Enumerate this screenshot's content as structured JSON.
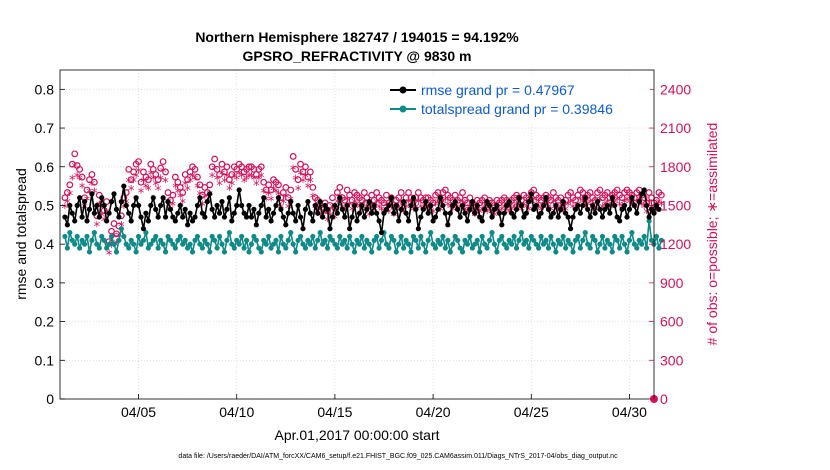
{
  "colors": {
    "rmse": "#000000",
    "spread": "#0e8a88",
    "obs": "#d6105a",
    "legend_text": "#0b5bd4"
  },
  "chart_data": {
    "type": "line",
    "title_line1": "Northern Hemisphere 182747 / 194015 = 94.192%",
    "title_line2": "GPSRO_REFRACTIVITY @ 9830 m",
    "xlabel": "Apr.01,2017 00:00:00 start",
    "ylabel_left": "rmse and totalspread",
    "ylabel_right": "# of obs: o=possible; ∗=assimilated",
    "x_tick_labels": [
      "04/05",
      "04/10",
      "04/15",
      "04/20",
      "04/25",
      "04/30"
    ],
    "x_tick_days": [
      5,
      10,
      15,
      20,
      25,
      30
    ],
    "xlim": [
      1.0,
      31.25
    ],
    "ylim_left": [
      0,
      0.85
    ],
    "y_ticks_left": [
      "0",
      "0.1",
      "0.2",
      "0.3",
      "0.4",
      "0.5",
      "0.6",
      "0.7",
      "0.8"
    ],
    "ylim_right": [
      0,
      2550
    ],
    "y_ticks_right": [
      "0",
      "300",
      "600",
      "900",
      "1200",
      "1500",
      "1800",
      "2100",
      "2400"
    ],
    "footer": "data file: /Users/raeder/DAI/ATM_forcXX/CAM6_setup/f.e21.FHIST_BGC.f09_025.CAM6assim.011/Diags_NTrS_2017-04/obs_diag_output.nc",
    "legend": [
      {
        "label": "rmse grand pr = 0.47967",
        "series": "rmse"
      },
      {
        "label": "totalspread grand pr = 0.39846",
        "series": "totalspread"
      }
    ],
    "series": [
      {
        "name": "rmse",
        "values": [
          0.47,
          0.45,
          0.5,
          0.48,
          0.46,
          0.5,
          0.52,
          0.47,
          0.51,
          0.46,
          0.49,
          0.53,
          0.48,
          0.5,
          0.47,
          0.52,
          0.5,
          0.46,
          0.48,
          0.51,
          0.53,
          0.49,
          0.47,
          0.51,
          0.55,
          0.5,
          0.48,
          0.46,
          0.5,
          0.52,
          0.5,
          0.47,
          0.44,
          0.48,
          0.46,
          0.5,
          0.52,
          0.49,
          0.47,
          0.5,
          0.52,
          0.47,
          0.51,
          0.49,
          0.47,
          0.46,
          0.48,
          0.5,
          0.47,
          0.49,
          0.45,
          0.48,
          0.46,
          0.47,
          0.5,
          0.52,
          0.48,
          0.47,
          0.51,
          0.53,
          0.49,
          0.47,
          0.5,
          0.48,
          0.51,
          0.47,
          0.49,
          0.52,
          0.46,
          0.48,
          0.5,
          0.54,
          0.5,
          0.48,
          0.47,
          0.5,
          0.47,
          0.49,
          0.45,
          0.48,
          0.5,
          0.52,
          0.47,
          0.49,
          0.46,
          0.48,
          0.5,
          0.52,
          0.49,
          0.47,
          0.45,
          0.48,
          0.51,
          0.48,
          0.46,
          0.5,
          0.47,
          0.44,
          0.49,
          0.51,
          0.48,
          0.46,
          0.5,
          0.48,
          0.51,
          0.47,
          0.5,
          0.49,
          0.44,
          0.47,
          0.5,
          0.48,
          0.52,
          0.49,
          0.47,
          0.5,
          0.44,
          0.47,
          0.5,
          0.46,
          0.48,
          0.5,
          0.47,
          0.49,
          0.51,
          0.48,
          0.5,
          0.48,
          0.46,
          0.43,
          0.48,
          0.49,
          0.5,
          0.52,
          0.48,
          0.5,
          0.46,
          0.49,
          0.51,
          0.48,
          0.46,
          0.5,
          0.52,
          0.49,
          0.44,
          0.47,
          0.49,
          0.51,
          0.48,
          0.5,
          0.46,
          0.47,
          0.49,
          0.52,
          0.5,
          0.48,
          0.45,
          0.48,
          0.5,
          0.51,
          0.49,
          0.47,
          0.5,
          0.48,
          0.46,
          0.49,
          0.51,
          0.48,
          0.5,
          0.47,
          0.46,
          0.49,
          0.51,
          0.5,
          0.47,
          0.49,
          0.5,
          0.48,
          0.45,
          0.48,
          0.5,
          0.51,
          0.48,
          0.47,
          0.49,
          0.52,
          0.5,
          0.47,
          0.48,
          0.51,
          0.53,
          0.49,
          0.5,
          0.47,
          0.48,
          0.5,
          0.52,
          0.49,
          0.47,
          0.48,
          0.5,
          0.47,
          0.49,
          0.51,
          0.48,
          0.47,
          0.44,
          0.47,
          0.49,
          0.5,
          0.48,
          0.5,
          0.52,
          0.49,
          0.47,
          0.5,
          0.48,
          0.51,
          0.49,
          0.47,
          0.49,
          0.5,
          0.48,
          0.52,
          0.5,
          0.47,
          0.46,
          0.49,
          0.5,
          0.47,
          0.49,
          0.52,
          0.5,
          0.48,
          0.51,
          0.53,
          0.54,
          0.5,
          0.47,
          0.49,
          0.48,
          0.5,
          0.49
        ]
      },
      {
        "name": "totalspread",
        "values": [
          0.42,
          0.39,
          0.43,
          0.41,
          0.4,
          0.42,
          0.39,
          0.41,
          0.4,
          0.42,
          0.38,
          0.41,
          0.43,
          0.4,
          0.39,
          0.42,
          0.41,
          0.39,
          0.4,
          0.42,
          0.4,
          0.38,
          0.41,
          0.44,
          0.42,
          0.4,
          0.39,
          0.41,
          0.4,
          0.38,
          0.42,
          0.4,
          0.41,
          0.43,
          0.39,
          0.4,
          0.41,
          0.42,
          0.39,
          0.41,
          0.4,
          0.38,
          0.42,
          0.41,
          0.4,
          0.39,
          0.41,
          0.42,
          0.4,
          0.41,
          0.39,
          0.4,
          0.38,
          0.41,
          0.42,
          0.4,
          0.39,
          0.41,
          0.4,
          0.38,
          0.42,
          0.41,
          0.39,
          0.42,
          0.4,
          0.38,
          0.41,
          0.43,
          0.4,
          0.39,
          0.41,
          0.4,
          0.42,
          0.39,
          0.41,
          0.38,
          0.4,
          0.42,
          0.41,
          0.39,
          0.38,
          0.41,
          0.4,
          0.42,
          0.39,
          0.4,
          0.41,
          0.38,
          0.42,
          0.4,
          0.39,
          0.41,
          0.43,
          0.4,
          0.38,
          0.41,
          0.42,
          0.4,
          0.39,
          0.41,
          0.4,
          0.42,
          0.39,
          0.41,
          0.43,
          0.4,
          0.41,
          0.39,
          0.42,
          0.41,
          0.4,
          0.39,
          0.42,
          0.4,
          0.41,
          0.39,
          0.42,
          0.4,
          0.38,
          0.41,
          0.4,
          0.42,
          0.39,
          0.41,
          0.4,
          0.38,
          0.41,
          0.42,
          0.39,
          0.41,
          0.43,
          0.4,
          0.39,
          0.42,
          0.41,
          0.38,
          0.4,
          0.42,
          0.39,
          0.41,
          0.4,
          0.38,
          0.42,
          0.41,
          0.39,
          0.42,
          0.4,
          0.38,
          0.41,
          0.43,
          0.4,
          0.39,
          0.41,
          0.4,
          0.42,
          0.39,
          0.41,
          0.38,
          0.4,
          0.42,
          0.41,
          0.39,
          0.38,
          0.41,
          0.4,
          0.42,
          0.39,
          0.4,
          0.41,
          0.38,
          0.42,
          0.4,
          0.39,
          0.41,
          0.43,
          0.4,
          0.38,
          0.41,
          0.42,
          0.4,
          0.39,
          0.41,
          0.4,
          0.42,
          0.39,
          0.41,
          0.43,
          0.4,
          0.41,
          0.39,
          0.42,
          0.41,
          0.4,
          0.39,
          0.42,
          0.4,
          0.41,
          0.39,
          0.42,
          0.4,
          0.38,
          0.41,
          0.4,
          0.42,
          0.39,
          0.41,
          0.4,
          0.38,
          0.41,
          0.42,
          0.39,
          0.41,
          0.43,
          0.4,
          0.39,
          0.42,
          0.41,
          0.38,
          0.4,
          0.42,
          0.39,
          0.41,
          0.4,
          0.38,
          0.42,
          0.41,
          0.39,
          0.42,
          0.4,
          0.38,
          0.41,
          0.43,
          0.4,
          0.39,
          0.41,
          0.4,
          0.42,
          0.39,
          0.46,
          0.41,
          0.4,
          0.42,
          0.39,
          0.41
        ]
      },
      {
        "name": "obs_possible",
        "values": [
          1560,
          1600,
          1660,
          1820,
          1900,
          1810,
          1780,
          1720,
          1560,
          1620,
          1700,
          1740,
          1680,
          1420,
          1580,
          1510,
          1460,
          1530,
          1220,
          1300,
          1360,
          1280,
          1340,
          1420,
          1560,
          1600,
          1780,
          1700,
          1760,
          1820,
          1840,
          1680,
          1760,
          1720,
          1700,
          1820,
          1780,
          1740,
          1700,
          1790,
          1840,
          1760,
          1600,
          1540,
          1580,
          1720,
          1680,
          1640,
          1600,
          1740,
          1700,
          1760,
          1800,
          1780,
          1720,
          1660,
          1580,
          1640,
          1600,
          1660,
          1800,
          1860,
          1780,
          1740,
          1820,
          1760,
          1800,
          1700,
          1740,
          1800,
          1780,
          1820,
          1800,
          1760,
          1780,
          1800,
          1800,
          1780,
          1740,
          1780,
          1800,
          1680,
          1620,
          1660,
          1620,
          1700,
          1680,
          1660,
          1560,
          1600,
          1640,
          1560,
          1620,
          1880,
          1780,
          1700,
          1820,
          1760,
          1800,
          1720,
          1760,
          1640,
          1560,
          1540,
          1500,
          1480,
          1520,
          1460,
          1500,
          1560,
          1480,
          1600,
          1640,
          1560,
          1540,
          1620,
          1580,
          1540,
          1600,
          1580,
          1560,
          1540,
          1600,
          1560,
          1500,
          1580,
          1540,
          1600,
          1560,
          1540,
          1520,
          1580,
          1520,
          1560,
          1500,
          1540,
          1560,
          1600,
          1520,
          1560,
          1600,
          1560,
          1540,
          1560,
          1600,
          1560,
          1540,
          1560,
          1560,
          1540,
          1520,
          1580,
          1600,
          1540,
          1600,
          1620,
          1580,
          1560,
          1540,
          1580,
          1540,
          1560,
          1600,
          1540,
          1520,
          1560,
          1520,
          1500,
          1540,
          1520,
          1540,
          1560,
          1520,
          1540,
          1520,
          1500,
          1540,
          1520,
          1540,
          1560,
          1540,
          1520,
          1540,
          1560,
          1580,
          1560,
          1540,
          1580,
          1560,
          1540,
          1600,
          1620,
          1580,
          1560,
          1540,
          1560,
          1580,
          1560,
          1540,
          1600,
          1560,
          1540,
          1560,
          1520,
          1540,
          1580,
          1600,
          1560,
          1540,
          1580,
          1620,
          1600,
          1560,
          1580,
          1600,
          1560,
          1540,
          1600,
          1620,
          1560,
          1580,
          1600,
          1560,
          1580,
          1600,
          1620,
          1580,
          1560,
          1600,
          1620,
          1600,
          1580,
          1560,
          1600,
          1620,
          1580,
          1560,
          1520,
          1600,
          1560,
          1520,
          1540,
          1600,
          1580
        ]
      },
      {
        "name": "obs_assimilated",
        "values": [
          1480,
          1520,
          1580,
          1700,
          1800,
          1720,
          1700,
          1640,
          1480,
          1540,
          1600,
          1660,
          1600,
          1340,
          1500,
          1420,
          1380,
          1440,
          1120,
          1180,
          1260,
          1200,
          1260,
          1340,
          1480,
          1520,
          1680,
          1620,
          1680,
          1720,
          1760,
          1600,
          1680,
          1640,
          1620,
          1740,
          1700,
          1660,
          1620,
          1700,
          1760,
          1680,
          1520,
          1460,
          1500,
          1640,
          1600,
          1560,
          1520,
          1660,
          1620,
          1680,
          1720,
          1700,
          1640,
          1580,
          1500,
          1560,
          1520,
          1580,
          1720,
          1780,
          1700,
          1660,
          1740,
          1680,
          1720,
          1620,
          1660,
          1720,
          1700,
          1740,
          1720,
          1680,
          1700,
          1720,
          1720,
          1700,
          1660,
          1700,
          1720,
          1600,
          1540,
          1580,
          1540,
          1620,
          1600,
          1580,
          1480,
          1520,
          1560,
          1480,
          1540,
          1780,
          1700,
          1620,
          1740,
          1680,
          1720,
          1640,
          1680,
          1560,
          1480,
          1460,
          1420,
          1400,
          1440,
          1380,
          1420,
          1480,
          1400,
          1520,
          1560,
          1480,
          1460,
          1540,
          1500,
          1460,
          1520,
          1500,
          1480,
          1460,
          1520,
          1480,
          1420,
          1500,
          1460,
          1520,
          1480,
          1460,
          1440,
          1500,
          1440,
          1480,
          1420,
          1460,
          1480,
          1520,
          1440,
          1480,
          1520,
          1480,
          1460,
          1480,
          1520,
          1480,
          1460,
          1480,
          1480,
          1460,
          1440,
          1500,
          1520,
          1460,
          1520,
          1540,
          1500,
          1480,
          1460,
          1500,
          1460,
          1480,
          1520,
          1460,
          1440,
          1480,
          1440,
          1420,
          1460,
          1440,
          1460,
          1480,
          1440,
          1460,
          1440,
          1420,
          1460,
          1440,
          1460,
          1480,
          1460,
          1440,
          1460,
          1480,
          1500,
          1480,
          1460,
          1500,
          1480,
          1460,
          1520,
          1540,
          1500,
          1480,
          1460,
          1480,
          1500,
          1480,
          1460,
          1520,
          1480,
          1460,
          1480,
          1440,
          1460,
          1500,
          1520,
          1480,
          1460,
          1500,
          1540,
          1520,
          1480,
          1500,
          1520,
          1480,
          1460,
          1520,
          1540,
          1480,
          1500,
          1520,
          1480,
          1500,
          1520,
          1540,
          1500,
          1480,
          1520,
          1540,
          1520,
          1500,
          1480,
          1520,
          1540,
          1500,
          1480,
          1440,
          1520,
          1480,
          1440,
          1460,
          1520,
          1500
        ]
      }
    ],
    "x_start_day": 1.25,
    "x_step_day": 0.125
  }
}
